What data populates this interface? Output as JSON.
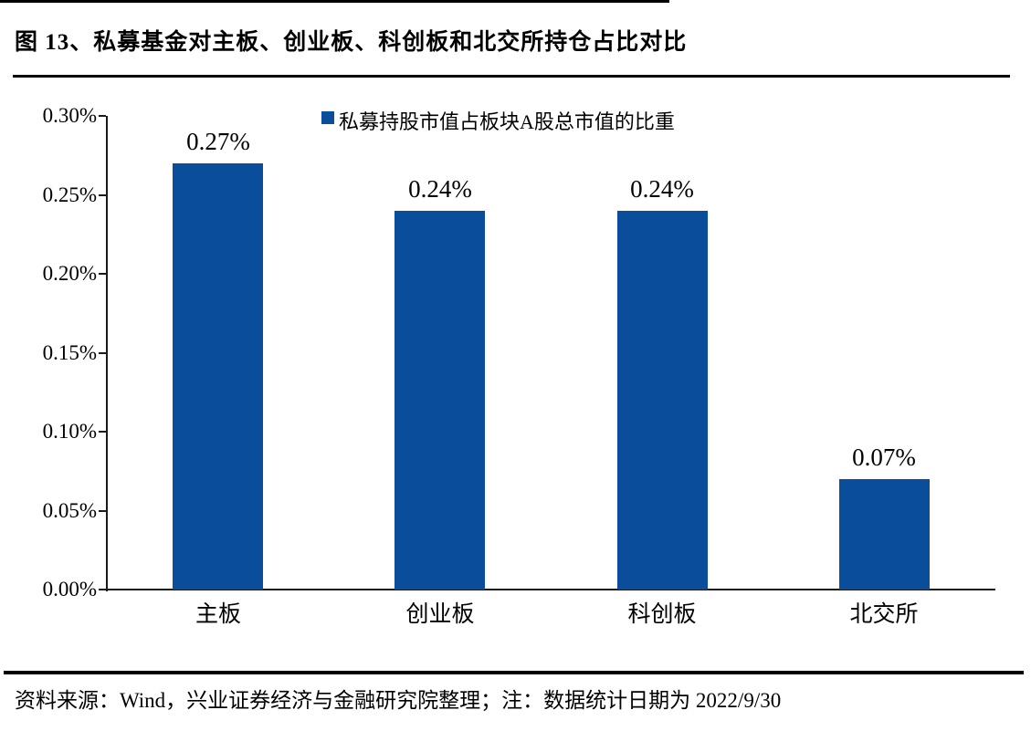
{
  "figure": {
    "title": "图 13、私募基金对主板、创业板、科创板和北交所持仓占比对比",
    "source_note": "资料来源：Wind，兴业证券经济与金融研究院整理；注：数据统计日期为 2022/9/30"
  },
  "chart_data": {
    "type": "bar",
    "categories": [
      "主板",
      "创业板",
      "科创板",
      "北交所"
    ],
    "values": [
      0.27,
      0.24,
      0.24,
      0.07
    ],
    "value_labels": [
      "0.27%",
      "0.24%",
      "0.24%",
      "0.07%"
    ],
    "series_name": "私募持股市值占板块A股总市值的比重",
    "legend": {
      "position": "top",
      "entries": [
        "私募持股市值占板块A股总市值的比重"
      ]
    },
    "unit": "percent",
    "ylim": [
      0,
      0.3
    ],
    "ytick_step": 0.05,
    "ytick_labels": [
      "0.00%",
      "0.05%",
      "0.10%",
      "0.15%",
      "0.20%",
      "0.25%",
      "0.30%"
    ],
    "grid": false,
    "bar_color": "#0A4E9B",
    "axis_color": "#1a1a1a",
    "text_color": "#000000"
  }
}
